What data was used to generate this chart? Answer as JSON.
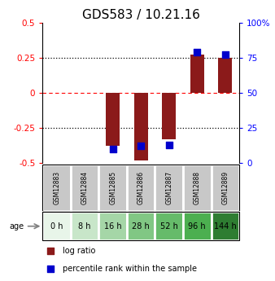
{
  "title": "GDS583 / 10.21.16",
  "samples": [
    "GSM12883",
    "GSM12884",
    "GSM12885",
    "GSM12886",
    "GSM12887",
    "GSM12888",
    "GSM12889"
  ],
  "ages": [
    "0 h",
    "8 h",
    "16 h",
    "28 h",
    "52 h",
    "96 h",
    "144 h"
  ],
  "log_ratios": [
    0.0,
    0.0,
    -0.38,
    -0.48,
    -0.33,
    0.27,
    0.25
  ],
  "percentile_ranks": [
    null,
    null,
    10,
    12,
    13,
    79,
    77
  ],
  "ylim_left": [
    -0.5,
    0.5
  ],
  "ylim_right": [
    0,
    100
  ],
  "yticks_left": [
    -0.5,
    -0.25,
    0,
    0.25,
    0.5
  ],
  "yticks_right": [
    0,
    25,
    50,
    75,
    100
  ],
  "ytick_labels_left": [
    "-0.5",
    "-0.25",
    "0",
    "0.25",
    "0.5"
  ],
  "ytick_labels_right": [
    "0",
    "25",
    "50",
    "75",
    "100%"
  ],
  "hlines_dotted": [
    -0.25,
    0.25
  ],
  "hline_zero_color": "red",
  "bar_color": "#8B1A1A",
  "dot_color": "#0000CC",
  "age_bg_colors": [
    "#e8f5e9",
    "#c8e6c9",
    "#a5d6a7",
    "#81c784",
    "#66bb6a",
    "#4caf50",
    "#2e7d32"
  ],
  "sample_bg_color": "#c8c8c8",
  "title_fontsize": 11,
  "tick_fontsize": 7.5,
  "label_fontsize": 7,
  "legend_fontsize": 7,
  "bar_width": 0.5,
  "dot_size": 40
}
